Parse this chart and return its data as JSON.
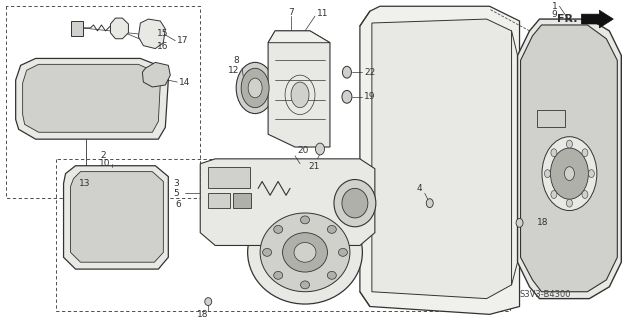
{
  "background_color": "#ffffff",
  "line_color": "#333333",
  "diagram_code": "S3V3-B4300",
  "fig_width": 6.25,
  "fig_height": 3.2,
  "dpi": 100,
  "gray_fill": "#e8e8e4",
  "gray_mid": "#d0d0cc",
  "gray_dark": "#b0b0aa",
  "gray_light": "#f0f0ec"
}
